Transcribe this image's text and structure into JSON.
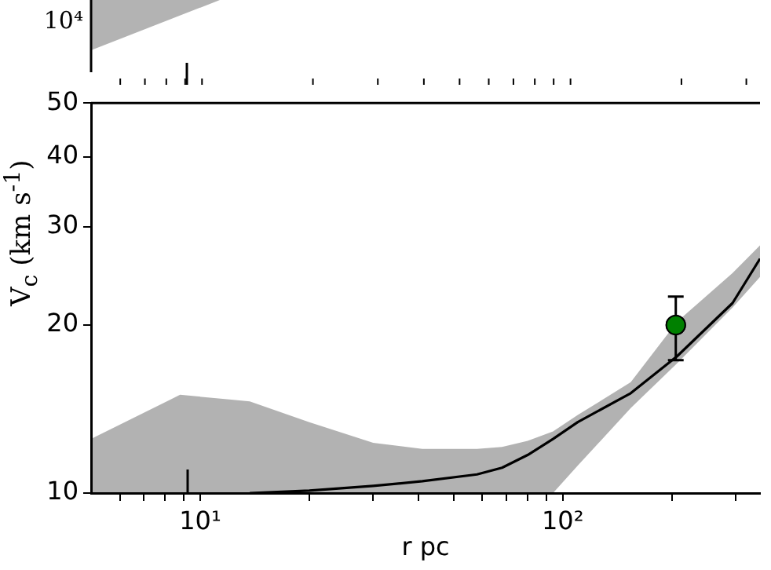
{
  "chart_data": [
    {
      "type": "other",
      "annotations": [
        "10⁴"
      ]
    },
    {
      "type": "line",
      "log": "xy",
      "xlabel": "r pc",
      "ylabel": "V$_{c}$ (km s$^{-1}$)",
      "xlim": [
        5,
        350
      ],
      "ylim": [
        10,
        50
      ],
      "yticks": [
        10,
        20,
        30,
        40,
        50
      ],
      "xticks": [
        {
          "value": 6,
          "label": null
        },
        {
          "value": 7,
          "label": null
        },
        {
          "value": 8,
          "label": null
        },
        {
          "value": 9,
          "label": null
        },
        {
          "value": 10,
          "label": "10¹"
        },
        {
          "value": 20,
          "label": null
        },
        {
          "value": 30,
          "label": null
        },
        {
          "value": 40,
          "label": null
        },
        {
          "value": 50,
          "label": null
        },
        {
          "value": 60,
          "label": null
        },
        {
          "value": 70,
          "label": null
        },
        {
          "value": 80,
          "label": null
        },
        {
          "value": 90,
          "label": null
        },
        {
          "value": 100,
          "label": "10²"
        },
        {
          "value": 200,
          "label": null
        },
        {
          "value": 300,
          "label": null
        }
      ],
      "series": [
        {
          "type": "line",
          "color": "#000000",
          "x": [
            5,
            8.8,
            13.7,
            20,
            30,
            41,
            58,
            68,
            80,
            94,
            110,
            154,
            207,
            294,
            350
          ],
          "values": [
            null,
            null,
            10.0,
            10.1,
            10.3,
            10.5,
            10.8,
            11.1,
            11.7,
            12.5,
            13.4,
            15.1,
            17.6,
            21.9,
            26.3
          ],
          "lower": [
            10,
            10,
            10,
            10,
            10,
            10,
            10,
            10,
            10,
            10,
            11.2,
            14.2,
            17.1,
            21.5,
            24.4
          ],
          "upper": [
            12.5,
            15.0,
            14.6,
            13.4,
            12.3,
            12.0,
            12.0,
            12.1,
            12.4,
            12.9,
            13.8,
            15.8,
            20.3,
            24.8,
            27.8
          ]
        },
        {
          "type": "scatter",
          "color": "#008000",
          "marker": "circle",
          "x": [
            205
          ],
          "values": [
            20
          ],
          "errors": [
            [
              17.3,
              22.5
            ]
          ]
        }
      ]
    }
  ]
}
